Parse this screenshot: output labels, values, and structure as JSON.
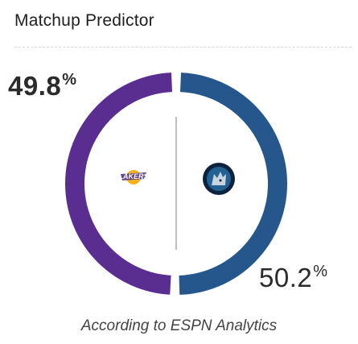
{
  "widget": {
    "title": "Matchup Predictor",
    "caption": "According to ESPN Analytics"
  },
  "teams": [
    {
      "side": "left",
      "name": "Lakers",
      "win_probability": "49.8",
      "value": 49.8,
      "color": "#5a2d91",
      "logo_icon": "lakers-logo-icon"
    },
    {
      "side": "right",
      "name": "Timberwolves",
      "win_probability": "50.2",
      "value": 50.2,
      "color": "#25578c",
      "logo_icon": "timberwolves-logo-icon"
    }
  ],
  "percent_symbol": "%",
  "colors": {
    "divider": "#aaaaaa",
    "text": "#2b2b2b"
  }
}
